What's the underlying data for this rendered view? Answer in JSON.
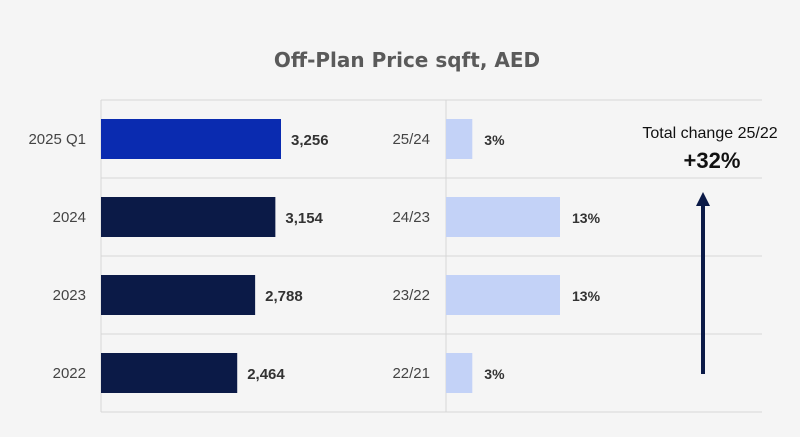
{
  "chart_data": {
    "type": "bar",
    "orientation": "horizontal",
    "title": "Off-Plan Price sqft, AED",
    "categories": [
      "2025 Q1",
      "2024",
      "2023",
      "2022"
    ],
    "values": [
      3256,
      3154,
      2788,
      2464
    ],
    "value_labels": [
      "3,256",
      "3,154",
      "2,788",
      "2,464"
    ],
    "bar_colors": [
      "#0a2bb0",
      "#0b1a47",
      "#0b1a47",
      "#0b1a47"
    ],
    "change_series": {
      "type": "bar",
      "categories": [
        "25/24",
        "24/23",
        "23/22",
        "22/21"
      ],
      "values": [
        3,
        13,
        13,
        3
      ],
      "value_labels": [
        "3%",
        "13%",
        "13%",
        "3%"
      ],
      "color": "#c3d2f7"
    },
    "total_change": {
      "label": "Total change 25/22",
      "value": "+32%"
    },
    "grid": true
  }
}
